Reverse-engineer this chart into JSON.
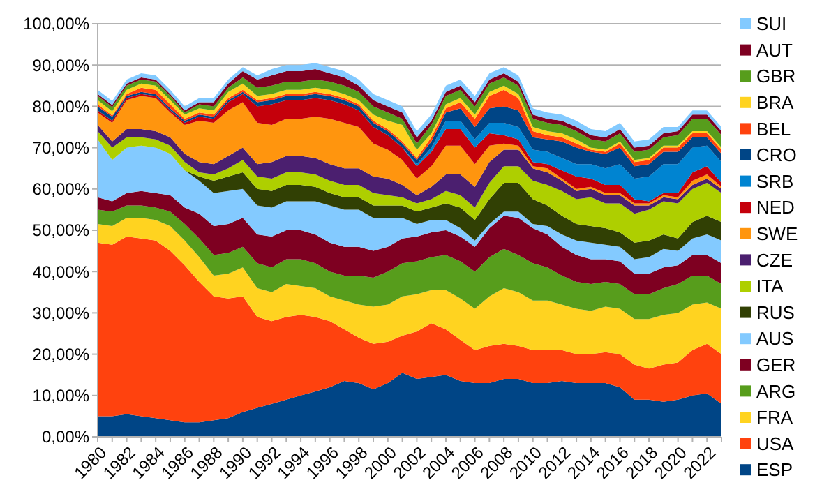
{
  "chart_data": {
    "type": "area",
    "stacked": true,
    "grid": "y",
    "legend": "right",
    "x": [
      1980,
      1981,
      1982,
      1983,
      1984,
      1985,
      1986,
      1987,
      1988,
      1989,
      1990,
      1991,
      1992,
      1993,
      1994,
      1995,
      1996,
      1997,
      1998,
      1999,
      2000,
      2001,
      2002,
      2003,
      2004,
      2005,
      2006,
      2007,
      2008,
      2009,
      2010,
      2011,
      2012,
      2013,
      2014,
      2015,
      2016,
      2017,
      2018,
      2019,
      2020,
      2021,
      2022,
      2023
    ],
    "xlim": [
      1980,
      2023
    ],
    "xticks": [
      1980,
      1982,
      1984,
      1986,
      1988,
      1990,
      1992,
      1994,
      1996,
      1998,
      2000,
      2002,
      2004,
      2006,
      2008,
      2010,
      2012,
      2014,
      2016,
      2018,
      2020,
      2022
    ],
    "ylim": [
      0,
      100
    ],
    "yticks": [
      {
        "value": 0,
        "label": "0,00%"
      },
      {
        "value": 10,
        "label": "10,00%"
      },
      {
        "value": 20,
        "label": "20,00%"
      },
      {
        "value": 30,
        "label": "30,00%"
      },
      {
        "value": 40,
        "label": "40,00%"
      },
      {
        "value": 50,
        "label": "50,00%"
      },
      {
        "value": 60,
        "label": "60,00%"
      },
      {
        "value": 70,
        "label": "70,00%"
      },
      {
        "value": 80,
        "label": "80,00%"
      },
      {
        "value": 90,
        "label": "90,00%"
      },
      {
        "value": 100,
        "label": "100,00%"
      }
    ],
    "series": [
      {
        "name": "ESP",
        "color": "#004586",
        "values": [
          5,
          5,
          5.5,
          5,
          4.5,
          4,
          3.5,
          3.5,
          4,
          4.5,
          6,
          7,
          8,
          9,
          10,
          11,
          12,
          13.5,
          13,
          11.5,
          13,
          15.5,
          14,
          14.5,
          15,
          13.5,
          13,
          13,
          14,
          14,
          13,
          13,
          13.5,
          13,
          13,
          13,
          12,
          9,
          9,
          8.5,
          9,
          10,
          10.5,
          8
        ]
      },
      {
        "name": "USA",
        "color": "#ff420e",
        "values": [
          42,
          41.5,
          43,
          43,
          43,
          41,
          38,
          34,
          30,
          29,
          28,
          22,
          20,
          20,
          19.5,
          18,
          16,
          12.5,
          11,
          11,
          10,
          9,
          11.5,
          13,
          11,
          10,
          8,
          9,
          8.5,
          8,
          8,
          8,
          7.5,
          7,
          7,
          7.5,
          8,
          8.5,
          7.5,
          9,
          9,
          11,
          12,
          12
        ]
      },
      {
        "name": "FRA",
        "color": "#ffd320",
        "values": [
          4.5,
          4.5,
          4.5,
          5,
          5,
          6,
          6,
          6,
          5,
          6,
          7,
          7,
          7,
          8,
          7,
          7,
          6,
          7,
          8,
          9,
          9,
          9.5,
          9,
          8,
          9.5,
          10,
          10,
          12,
          13.5,
          13,
          12,
          12,
          11,
          11,
          10.5,
          11,
          11,
          11,
          12,
          12,
          12,
          11,
          10,
          11
        ]
      },
      {
        "name": "ARG",
        "color": "#579d1c",
        "values": [
          3.5,
          3.5,
          3,
          3,
          3,
          3.5,
          4,
          4.5,
          5,
          5,
          5,
          6,
          6,
          6,
          6.5,
          6,
          6,
          6,
          7,
          7,
          8,
          8,
          8,
          8,
          8.5,
          9,
          9,
          9.5,
          9.5,
          9,
          9,
          8,
          7,
          6.5,
          6.5,
          6,
          6,
          6,
          6,
          6.5,
          7,
          7,
          6.5,
          6
        ]
      },
      {
        "name": "GER",
        "color": "#7e0021",
        "values": [
          3,
          2.5,
          3,
          3.5,
          3.5,
          4,
          4,
          6,
          7,
          7,
          7,
          7,
          7.5,
          7,
          7,
          7,
          7,
          7,
          7,
          6.5,
          6,
          6,
          6,
          6,
          6,
          6,
          6,
          7,
          8,
          9,
          8.5,
          8,
          7,
          6.5,
          6,
          5.5,
          5.5,
          5,
          5,
          5,
          4.5,
          5,
          5,
          5
        ]
      },
      {
        "name": "AUS",
        "color": "#83caff",
        "values": [
          14,
          10,
          11,
          11,
          11,
          10,
          9,
          8,
          8,
          8,
          7,
          7,
          7,
          7,
          7,
          8,
          9,
          9,
          9,
          8,
          7,
          5,
          3,
          3,
          2.5,
          2,
          1.5,
          1,
          1,
          1.5,
          1,
          2,
          3,
          3.5,
          4,
          3.5,
          3.5,
          3.5,
          4,
          4.5,
          3.5,
          4,
          5,
          5.5
        ]
      },
      {
        "name": "RUS",
        "color": "#314004",
        "values": [
          0,
          0,
          0,
          0,
          0,
          0,
          0,
          1,
          3,
          3.5,
          4,
          4,
          4,
          4,
          4,
          3.5,
          3,
          3,
          3,
          3,
          3,
          3,
          3,
          3,
          4,
          5,
          5,
          6,
          7,
          7,
          6,
          5,
          4.5,
          4,
          4,
          4,
          3.5,
          4,
          4,
          3.5,
          3,
          4,
          4.5,
          4.5
        ]
      },
      {
        "name": "ITA",
        "color": "#aecf00",
        "values": [
          2,
          3,
          2.5,
          2,
          2,
          2,
          2,
          1,
          1.5,
          2,
          3,
          3,
          3,
          3,
          3,
          3,
          3,
          3,
          3,
          3,
          2.5,
          2,
          2,
          2,
          3,
          3,
          3,
          4,
          4,
          4,
          4.5,
          5,
          6,
          6,
          7,
          6,
          7,
          7,
          7.5,
          8,
          8.5,
          8,
          8,
          7
        ]
      },
      {
        "name": "CZE",
        "color": "#4b1f6f",
        "values": [
          1.5,
          1.5,
          2,
          2,
          2,
          2,
          2,
          2.5,
          2.5,
          3,
          3,
          3,
          4,
          4,
          4,
          4,
          4,
          4,
          4,
          4,
          4,
          3,
          2,
          3,
          4,
          5,
          5,
          5,
          4,
          4,
          3,
          3,
          2.5,
          2,
          2,
          2,
          2,
          2,
          1,
          1,
          1,
          1,
          1,
          1
        ]
      },
      {
        "name": "SWE",
        "color": "#ff950e",
        "values": [
          3,
          4.5,
          7,
          8,
          8,
          6,
          7,
          10,
          10,
          11,
          11,
          10,
          9,
          9,
          9,
          10,
          11,
          11,
          10,
          8,
          7,
          6,
          4,
          5,
          7,
          7,
          5.5,
          4,
          1.5,
          1,
          0.5,
          1,
          0.5,
          0.5,
          0.5,
          0.5,
          0.5,
          0.5,
          0.5,
          0.5,
          0.5,
          1,
          1,
          0.5
        ]
      },
      {
        "name": "NED",
        "color": "#c5000b",
        "values": [
          0.5,
          0.5,
          0.5,
          0.5,
          0.5,
          0.5,
          0.5,
          1,
          1,
          2,
          2,
          4,
          5,
          4.5,
          4.5,
          4.5,
          4.5,
          4.5,
          4,
          4,
          3.5,
          3,
          3,
          3.5,
          4,
          4,
          4,
          3,
          2,
          1.5,
          1,
          1,
          2,
          3,
          2,
          2,
          2,
          1,
          0.5,
          0.5,
          1,
          2,
          2,
          1
        ]
      },
      {
        "name": "SRB",
        "color": "#0084d1",
        "values": [
          0,
          0,
          0,
          0,
          0,
          0,
          0,
          0,
          0,
          0,
          0,
          0,
          0,
          0,
          0,
          0,
          0,
          0,
          0,
          0,
          0,
          0,
          0.5,
          1,
          2,
          2,
          2,
          2.5,
          3,
          3,
          3,
          3,
          3,
          3,
          3.5,
          4,
          5,
          5,
          6,
          7,
          7,
          6,
          5,
          5
        ]
      },
      {
        "name": "CRO",
        "color": "#004586",
        "values": [
          1,
          1,
          0.5,
          0.5,
          0.5,
          0.5,
          0.5,
          0.5,
          0.5,
          0.5,
          0.5,
          1,
          1,
          1,
          1,
          1,
          1,
          1,
          1,
          1,
          1,
          1,
          1,
          1.5,
          2,
          3,
          3,
          3.5,
          4,
          4,
          3,
          3,
          4,
          4,
          3,
          3.5,
          4,
          3,
          3,
          3,
          3,
          2.5,
          2,
          2
        ]
      },
      {
        "name": "BEL",
        "color": "#ff420e",
        "values": [
          0.5,
          0.3,
          0.5,
          1,
          1,
          1,
          0.5,
          0.5,
          0.5,
          0.5,
          0.5,
          0.5,
          0.5,
          0.5,
          0.5,
          0.5,
          0.5,
          0.5,
          0.5,
          0.5,
          0.5,
          0.5,
          0.5,
          1,
          1,
          1.5,
          2,
          3,
          4,
          3,
          1.5,
          1,
          1,
          1,
          0.5,
          0.5,
          1,
          1,
          1,
          1,
          1,
          1,
          1,
          1
        ]
      },
      {
        "name": "BRA",
        "color": "#ffd320",
        "values": [
          1,
          1,
          1,
          1,
          1,
          1,
          1,
          1,
          1,
          1.5,
          1.5,
          1,
          1,
          1,
          1,
          1,
          1,
          1,
          1,
          1.5,
          2,
          4,
          2,
          1,
          1,
          1,
          1,
          1,
          1,
          1,
          1,
          1,
          1,
          1,
          0.5,
          0.5,
          0.5,
          0.5,
          0.5,
          0.5,
          0.5,
          0.5,
          0.5,
          0.5
        ]
      },
      {
        "name": "GBR",
        "color": "#579d1c",
        "values": [
          1,
          1,
          1,
          1,
          1,
          1,
          0.5,
          1,
          1,
          1,
          1.5,
          2,
          2,
          2,
          2,
          2,
          2,
          2,
          2,
          2,
          2,
          1.5,
          1.5,
          2,
          2,
          2,
          2,
          2,
          2,
          2,
          2,
          2,
          2,
          2,
          2,
          2,
          2,
          2,
          2,
          2,
          2.5,
          3,
          3,
          3
        ]
      },
      {
        "name": "AUT",
        "color": "#7e0021",
        "values": [
          0.5,
          0.5,
          0.5,
          0.5,
          0.5,
          0.5,
          0.5,
          0.5,
          1,
          1,
          1.5,
          2,
          2.5,
          2.5,
          2.5,
          2.5,
          2,
          2,
          1.5,
          1.5,
          1.5,
          1.5,
          1.5,
          1,
          1,
          1,
          1,
          1,
          1,
          1,
          1,
          1,
          1,
          1,
          1,
          1,
          1,
          1,
          1,
          1,
          1,
          1,
          1,
          1
        ]
      },
      {
        "name": "SUI",
        "color": "#83caff",
        "values": [
          1,
          1,
          1,
          1,
          1,
          1,
          1,
          1,
          1,
          1,
          1,
          1,
          1.5,
          1.5,
          1.5,
          1.5,
          1.5,
          1.5,
          1.5,
          1.5,
          1.5,
          1.5,
          1.5,
          1.5,
          1.5,
          1.5,
          1.5,
          1.5,
          1.5,
          1.5,
          1.5,
          1.5,
          1.5,
          1.5,
          1.5,
          1.5,
          1.5,
          1.5,
          1.5,
          1.5,
          1,
          1,
          1,
          1
        ]
      }
    ]
  }
}
